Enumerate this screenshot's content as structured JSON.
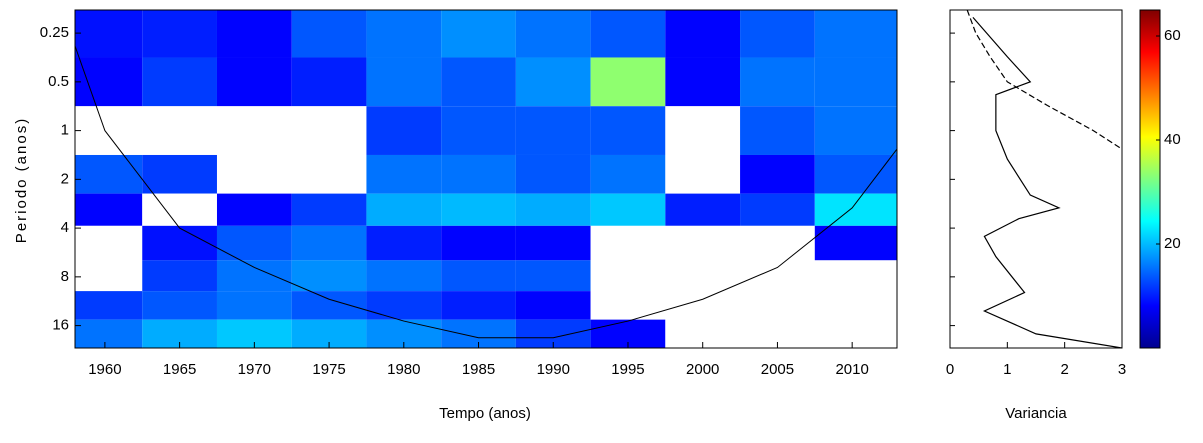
{
  "chart_data": [
    {
      "type": "heatmap",
      "x_label": "Tempo (anos)",
      "y_label": "Periodo (anos)",
      "xlim": [
        1958,
        2013
      ],
      "xticks": [
        1960,
        1965,
        1970,
        1975,
        1980,
        1985,
        1990,
        1995,
        2000,
        2005,
        2010
      ],
      "ylim": [
        0.18,
        22
      ],
      "yticks": [
        0.25,
        0.5,
        1,
        2,
        4,
        8,
        16
      ],
      "log_y": true,
      "y_reversed": true,
      "x": [
        1960,
        1965,
        1970,
        1975,
        1980,
        1985,
        1990,
        1995,
        2000,
        2005,
        2010
      ],
      "periods": [
        0.25,
        0.5,
        1,
        2,
        3,
        5,
        8,
        12,
        18
      ],
      "values": [
        [
          3,
          4,
          2,
          8,
          10,
          12,
          10,
          8,
          2,
          8,
          10
        ],
        [
          2,
          6,
          2,
          4,
          10,
          8,
          12,
          30,
          2,
          10,
          10
        ],
        [
          0,
          0,
          0,
          0,
          6,
          8,
          8,
          8,
          0,
          8,
          10
        ],
        [
          8,
          6,
          0,
          0,
          10,
          10,
          8,
          10,
          0,
          2,
          8
        ],
        [
          2,
          0,
          2,
          6,
          14,
          15,
          14,
          16,
          4,
          6,
          18
        ],
        [
          0,
          3,
          8,
          10,
          4,
          2,
          2,
          0,
          0,
          0,
          2
        ],
        [
          0,
          6,
          10,
          12,
          10,
          8,
          8,
          0,
          0,
          0,
          0
        ],
        [
          6,
          8,
          10,
          8,
          6,
          4,
          2,
          0,
          0,
          0,
          0
        ],
        [
          10,
          14,
          16,
          14,
          12,
          10,
          6,
          2,
          0,
          0,
          0
        ]
      ],
      "clim": [
        0,
        65
      ],
      "cticks": [
        20,
        40,
        60
      ],
      "coi": {
        "x": [
          1958,
          1960,
          1965,
          1970,
          1975,
          1980,
          1985,
          1990,
          1995,
          2000,
          2005,
          2010,
          2013
        ],
        "values": [
          0.3,
          1,
          4,
          7,
          11,
          15,
          19,
          19,
          15,
          11,
          7,
          3,
          1.3
        ]
      }
    },
    {
      "type": "line",
      "x_label": "Variancia",
      "xlim": [
        0,
        3
      ],
      "xticks": [
        0,
        1,
        2,
        3
      ],
      "ylim": [
        0.18,
        22
      ],
      "log_y": true,
      "y_reversed": true,
      "series": [
        {
          "color": "#000000",
          "dash": false,
          "y": [
            0.2,
            0.35,
            0.5,
            0.6,
            1,
            1.5,
            2.5,
            3,
            3.5,
            4.5,
            6,
            10,
            13,
            18,
            22
          ],
          "values": [
            0.4,
            1.0,
            1.4,
            0.8,
            0.8,
            1.0,
            1.4,
            1.9,
            1.2,
            0.6,
            0.8,
            1.3,
            0.6,
            1.5,
            3
          ]
        },
        {
          "color": "#000000",
          "dash": true,
          "y": [
            0.18,
            0.25,
            0.35,
            0.5,
            0.7,
            1,
            1.3
          ],
          "values": [
            0.3,
            0.45,
            0.7,
            1.0,
            1.7,
            2.5,
            3
          ]
        }
      ]
    }
  ]
}
